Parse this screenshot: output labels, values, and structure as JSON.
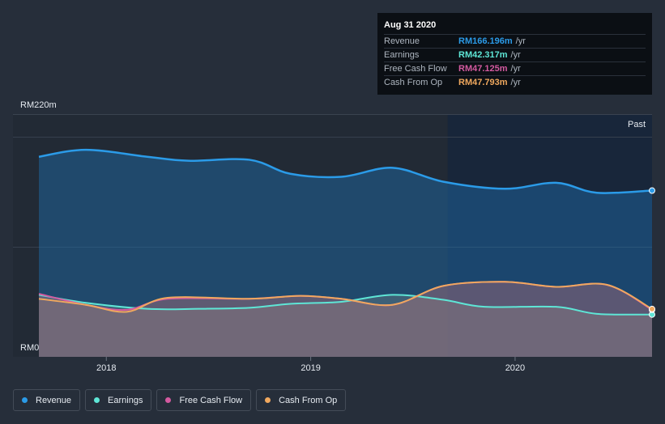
{
  "chart_data": {
    "type": "area",
    "x_ticks": [
      "2018",
      "2019",
      "2020"
    ],
    "y_axis_top_label": "RM220m",
    "y_axis_bottom_label": "RM0",
    "ylim": [
      0,
      220
    ],
    "past_label": "Past",
    "series": [
      {
        "name": "Revenue",
        "color": "#2b9be8",
        "points": [
          [
            2017.67,
            200
          ],
          [
            2017.9,
            207
          ],
          [
            2018.2,
            200
          ],
          [
            2018.4,
            196
          ],
          [
            2018.7,
            197
          ],
          [
            2018.9,
            183
          ],
          [
            2019.15,
            180
          ],
          [
            2019.4,
            189
          ],
          [
            2019.65,
            175
          ],
          [
            2019.95,
            168
          ],
          [
            2020.2,
            174
          ],
          [
            2020.4,
            164
          ],
          [
            2020.67,
            166.2
          ]
        ]
      },
      {
        "name": "Earnings",
        "color": "#5ee6d6",
        "points": [
          [
            2017.67,
            62
          ],
          [
            2017.9,
            54
          ],
          [
            2018.2,
            48
          ],
          [
            2018.45,
            48
          ],
          [
            2018.7,
            49
          ],
          [
            2018.9,
            53
          ],
          [
            2019.15,
            55
          ],
          [
            2019.4,
            62
          ],
          [
            2019.65,
            57
          ],
          [
            2019.85,
            50
          ],
          [
            2020.2,
            50
          ],
          [
            2020.4,
            43
          ],
          [
            2020.67,
            42.3
          ]
        ]
      },
      {
        "name": "Free Cash Flow",
        "color": "#d45aa0",
        "points": [
          [
            2017.67,
            63
          ],
          [
            2017.9,
            52
          ],
          [
            2018.1,
            47
          ],
          [
            2018.3,
            58
          ],
          [
            2018.7,
            58
          ],
          [
            2018.95,
            61
          ],
          [
            2019.15,
            58
          ],
          [
            2019.4,
            52
          ],
          [
            2019.65,
            71
          ],
          [
            2019.95,
            75
          ],
          [
            2020.2,
            70
          ],
          [
            2020.45,
            72
          ],
          [
            2020.67,
            47.1
          ]
        ]
      },
      {
        "name": "Cash From Op",
        "color": "#f0a85e",
        "points": [
          [
            2017.67,
            58
          ],
          [
            2017.9,
            52
          ],
          [
            2018.1,
            45
          ],
          [
            2018.3,
            59
          ],
          [
            2018.7,
            58
          ],
          [
            2018.95,
            61
          ],
          [
            2019.15,
            58
          ],
          [
            2019.4,
            52
          ],
          [
            2019.65,
            71
          ],
          [
            2019.95,
            75
          ],
          [
            2020.2,
            70
          ],
          [
            2020.45,
            72
          ],
          [
            2020.67,
            47.8
          ]
        ]
      }
    ]
  },
  "tooltip": {
    "date": "Aug 31 2020",
    "rows": [
      {
        "label": "Revenue",
        "value": "RM166.196m",
        "unit": "/yr",
        "color": "#2b9be8"
      },
      {
        "label": "Earnings",
        "value": "RM42.317m",
        "unit": "/yr",
        "color": "#5ee6d6"
      },
      {
        "label": "Free Cash Flow",
        "value": "RM47.125m",
        "unit": "/yr",
        "color": "#d45aa0"
      },
      {
        "label": "Cash From Op",
        "value": "RM47.793m",
        "unit": "/yr",
        "color": "#f0a85e"
      }
    ]
  },
  "legend": [
    {
      "label": "Revenue",
      "color": "#2b9be8"
    },
    {
      "label": "Earnings",
      "color": "#5ee6d6"
    },
    {
      "label": "Free Cash Flow",
      "color": "#d45aa0"
    },
    {
      "label": "Cash From Op",
      "color": "#f0a85e"
    }
  ]
}
